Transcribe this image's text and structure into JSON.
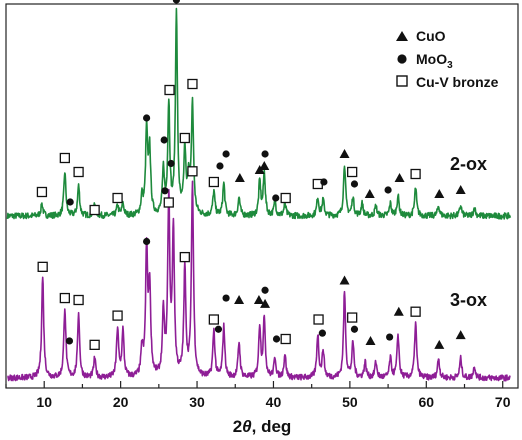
{
  "chart_data": {
    "type": "line",
    "xlabel": "2θ, deg",
    "xlim": [
      5,
      72
    ],
    "x_ticks": [
      10,
      20,
      30,
      40,
      50,
      60,
      70
    ],
    "legend": [
      {
        "name": "CuO",
        "marker": "triangle"
      },
      {
        "name": "MoO3",
        "marker": "circle"
      },
      {
        "name": "Cu-V bronze",
        "marker": "open-square"
      }
    ],
    "series": [
      {
        "name": "2-ox",
        "color": "#1e8a3c",
        "baseline": 0.0,
        "peaks": [
          [
            9.7,
            0.06
          ],
          [
            12.7,
            0.22
          ],
          [
            14.5,
            0.15
          ],
          [
            16.6,
            0.06
          ],
          [
            19.6,
            0.05
          ],
          [
            20.3,
            0.06
          ],
          [
            22.8,
            0.09
          ],
          [
            23.4,
            0.42
          ],
          [
            23.8,
            0.32
          ],
          [
            25.6,
            0.22
          ],
          [
            26.3,
            0.55
          ],
          [
            27.3,
            1.0
          ],
          [
            28.4,
            0.32
          ],
          [
            28.9,
            0.18
          ],
          [
            29.4,
            0.56
          ],
          [
            32.2,
            0.12
          ],
          [
            33.5,
            0.16
          ],
          [
            35.5,
            0.09
          ],
          [
            38.2,
            0.17
          ],
          [
            38.8,
            0.21
          ],
          [
            40.2,
            0.07
          ],
          [
            41.5,
            0.06
          ],
          [
            45.8,
            0.09
          ],
          [
            46.5,
            0.08
          ],
          [
            49.3,
            0.26
          ],
          [
            50.4,
            0.09
          ],
          [
            51.6,
            0.06
          ],
          [
            53.4,
            0.05
          ],
          [
            55.3,
            0.06
          ],
          [
            56.3,
            0.1
          ],
          [
            58.6,
            0.14
          ],
          [
            61.6,
            0.05
          ],
          [
            64.5,
            0.05
          ],
          [
            66.3,
            0.04
          ]
        ],
        "markers": [
          {
            "type": "open-square",
            "x": 9.7,
            "y": 0.12
          },
          {
            "type": "open-square",
            "x": 12.7,
            "y": 0.29
          },
          {
            "type": "circle",
            "x": 13.4,
            "y": 0.07
          },
          {
            "type": "open-square",
            "x": 14.5,
            "y": 0.22
          },
          {
            "type": "open-square",
            "x": 16.6,
            "y": 0.03
          },
          {
            "type": "open-square",
            "x": 19.6,
            "y": 0.09
          },
          {
            "type": "circle",
            "x": 23.4,
            "y": 0.49
          },
          {
            "type": "circle",
            "x": 25.7,
            "y": 0.38
          },
          {
            "type": "open-square",
            "x": 26.4,
            "y": 0.63
          },
          {
            "type": "circle",
            "x": 27.3,
            "y": 1.08
          },
          {
            "type": "open-square",
            "x": 28.4,
            "y": 0.39
          },
          {
            "type": "open-square",
            "x": 29.4,
            "y": 0.66
          },
          {
            "type": "open-square",
            "x": 32.2,
            "y": 0.17
          },
          {
            "type": "circle",
            "x": 33.0,
            "y": 0.25
          },
          {
            "type": "circle",
            "x": 33.8,
            "y": 0.31
          },
          {
            "type": "triangle",
            "x": 35.6,
            "y": 0.19
          },
          {
            "type": "triangle",
            "x": 38.2,
            "y": 0.23
          },
          {
            "type": "triangle",
            "x": 38.8,
            "y": 0.25
          },
          {
            "type": "circle",
            "x": 38.9,
            "y": 0.31
          },
          {
            "type": "circle",
            "x": 40.3,
            "y": 0.09
          },
          {
            "type": "open-square",
            "x": 41.6,
            "y": 0.09
          },
          {
            "type": "open-square",
            "x": 45.8,
            "y": 0.16
          },
          {
            "type": "circle",
            "x": 46.6,
            "y": 0.17
          },
          {
            "type": "triangle",
            "x": 49.3,
            "y": 0.31
          },
          {
            "type": "open-square",
            "x": 50.3,
            "y": 0.22
          },
          {
            "type": "circle",
            "x": 50.6,
            "y": 0.16
          },
          {
            "type": "triangle",
            "x": 52.6,
            "y": 0.11
          },
          {
            "type": "circle",
            "x": 55.0,
            "y": 0.13
          },
          {
            "type": "triangle",
            "x": 56.5,
            "y": 0.19
          },
          {
            "type": "open-square",
            "x": 58.6,
            "y": 0.21
          },
          {
            "type": "triangle",
            "x": 61.7,
            "y": 0.11
          },
          {
            "type": "triangle",
            "x": 64.5,
            "y": 0.13
          }
        ]
      },
      {
        "name": "3-ox",
        "color": "#8e1e96",
        "baseline": 0.0,
        "peaks": [
          [
            9.8,
            0.52
          ],
          [
            12.7,
            0.36
          ],
          [
            14.5,
            0.33
          ],
          [
            16.6,
            0.1
          ],
          [
            19.6,
            0.25
          ],
          [
            20.3,
            0.24
          ],
          [
            22.8,
            0.14
          ],
          [
            23.4,
            0.64
          ],
          [
            23.8,
            0.45
          ],
          [
            25.6,
            0.32
          ],
          [
            26.3,
            0.9
          ],
          [
            26.9,
            0.75
          ],
          [
            28.4,
            0.55
          ],
          [
            29.4,
            1.0
          ],
          [
            32.2,
            0.24
          ],
          [
            33.5,
            0.26
          ],
          [
            35.5,
            0.18
          ],
          [
            38.2,
            0.26
          ],
          [
            38.8,
            0.3
          ],
          [
            40.2,
            0.1
          ],
          [
            41.5,
            0.12
          ],
          [
            45.8,
            0.22
          ],
          [
            46.5,
            0.14
          ],
          [
            49.3,
            0.44
          ],
          [
            50.4,
            0.18
          ],
          [
            52.0,
            0.08
          ],
          [
            53.4,
            0.08
          ],
          [
            55.3,
            0.1
          ],
          [
            56.3,
            0.22
          ],
          [
            58.6,
            0.28
          ],
          [
            61.6,
            0.1
          ],
          [
            64.5,
            0.1
          ],
          [
            66.3,
            0.06
          ]
        ],
        "markers": [
          {
            "type": "open-square",
            "x": 9.8,
            "y": 0.57
          },
          {
            "type": "open-square",
            "x": 12.7,
            "y": 0.41
          },
          {
            "type": "circle",
            "x": 13.3,
            "y": 0.19
          },
          {
            "type": "open-square",
            "x": 14.5,
            "y": 0.4
          },
          {
            "type": "open-square",
            "x": 16.6,
            "y": 0.17
          },
          {
            "type": "open-square",
            "x": 19.6,
            "y": 0.32
          },
          {
            "type": "circle",
            "x": 23.4,
            "y": 0.7
          },
          {
            "type": "circle",
            "x": 25.8,
            "y": 0.96
          },
          {
            "type": "open-square",
            "x": 26.3,
            "y": 0.9
          },
          {
            "type": "circle",
            "x": 26.6,
            "y": 1.1
          },
          {
            "type": "open-square",
            "x": 28.4,
            "y": 0.62
          },
          {
            "type": "open-square",
            "x": 29.4,
            "y": 1.06
          },
          {
            "type": "open-square",
            "x": 32.2,
            "y": 0.3
          },
          {
            "type": "circle",
            "x": 32.8,
            "y": 0.25
          },
          {
            "type": "circle",
            "x": 33.8,
            "y": 0.41
          },
          {
            "type": "triangle",
            "x": 35.5,
            "y": 0.4
          },
          {
            "type": "triangle",
            "x": 38.1,
            "y": 0.4
          },
          {
            "type": "triangle",
            "x": 38.9,
            "y": 0.38
          },
          {
            "type": "circle",
            "x": 38.9,
            "y": 0.45
          },
          {
            "type": "circle",
            "x": 40.4,
            "y": 0.2
          },
          {
            "type": "open-square",
            "x": 41.6,
            "y": 0.2
          },
          {
            "type": "open-square",
            "x": 45.9,
            "y": 0.3
          },
          {
            "type": "circle",
            "x": 46.4,
            "y": 0.23
          },
          {
            "type": "triangle",
            "x": 49.3,
            "y": 0.5
          },
          {
            "type": "open-square",
            "x": 50.3,
            "y": 0.31
          },
          {
            "type": "circle",
            "x": 50.6,
            "y": 0.25
          },
          {
            "type": "triangle",
            "x": 52.7,
            "y": 0.19
          },
          {
            "type": "circle",
            "x": 55.2,
            "y": 0.21
          },
          {
            "type": "triangle",
            "x": 56.4,
            "y": 0.34
          },
          {
            "type": "open-square",
            "x": 58.6,
            "y": 0.34
          },
          {
            "type": "triangle",
            "x": 61.7,
            "y": 0.17
          },
          {
            "type": "triangle",
            "x": 64.5,
            "y": 0.22
          }
        ]
      }
    ]
  }
}
